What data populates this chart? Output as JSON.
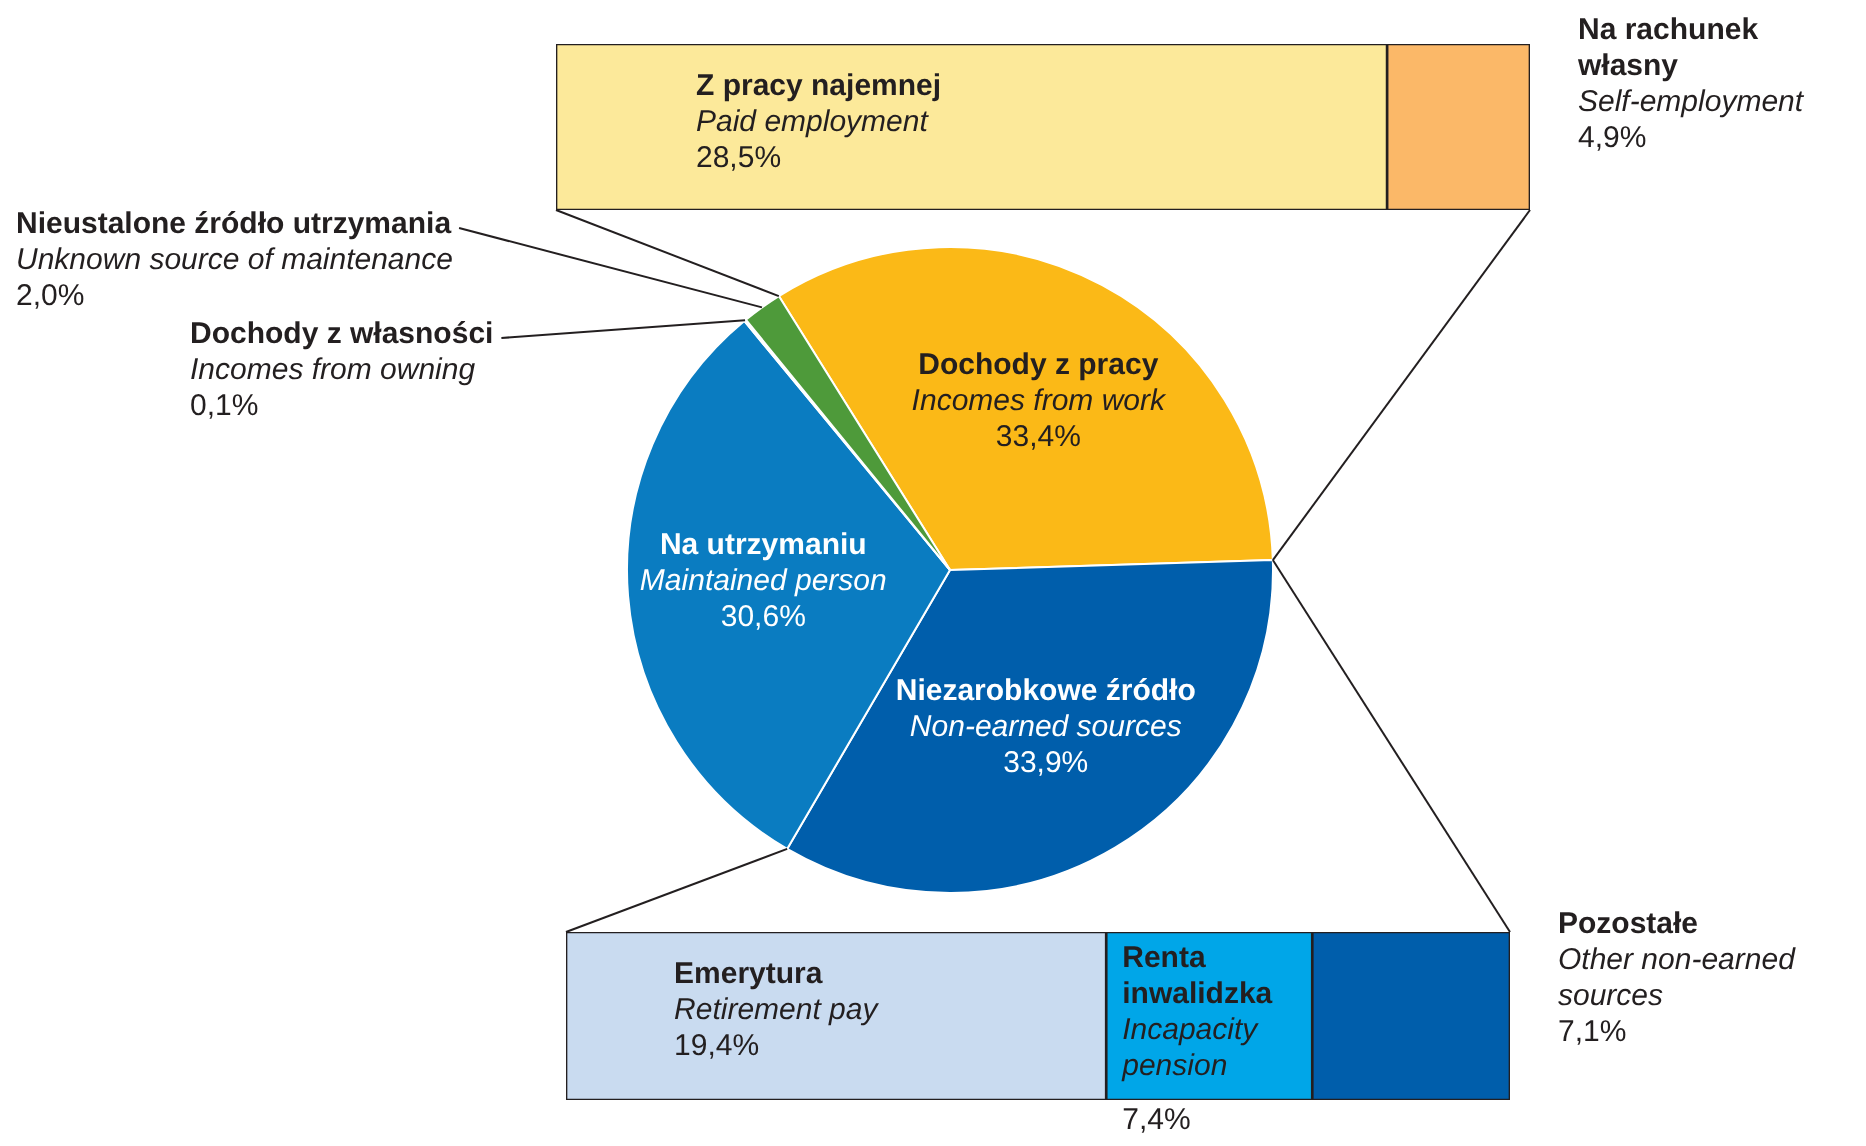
{
  "chart_data": [
    {
      "type": "pie",
      "categories": [
        "Dochody z pracy\nIncomes from work",
        "Niezarobkowe źródło\nNon-earned sources",
        "Na utrzymaniu\nMaintained person",
        "Dochody z własności\nIncomes from owning",
        "Nieustalone źródło utrzymania\nUnknown source of maintenance"
      ],
      "values": [
        33.4,
        33.9,
        30.6,
        0.1,
        2.0
      ],
      "value_labels": [
        "33,4%",
        "33,9%",
        "30,6%",
        "0,1%",
        "2,0%"
      ],
      "colors": [
        "#fbb917",
        "#005eab",
        "#0a7cc1",
        "#d9d9d9",
        "#4e9a3a"
      ]
    },
    {
      "type": "bar",
      "orientation": "horizontal",
      "stacked": true,
      "categories": [
        null
      ],
      "series": [
        {
          "name": "Z pracy najemnej\nPaid employment",
          "color": "#fce99a",
          "values": [
            28.5
          ],
          "value_labels": [
            "28,5%"
          ]
        },
        {
          "name": "Na rachunek własny\nSelf-employment",
          "color": "#fbb868",
          "values": [
            4.9
          ],
          "value_labels": [
            "4,9%"
          ]
        }
      ]
    },
    {
      "type": "bar",
      "orientation": "horizontal",
      "stacked": true,
      "categories": [
        null
      ],
      "series": [
        {
          "name": "Emerytura\nRetirement pay",
          "color": "#c9dbf0",
          "values": [
            19.4
          ],
          "value_labels": [
            "19,4%"
          ]
        },
        {
          "name": "Renta inwalidzka\nIncapacity pension",
          "color": "#00a6e8",
          "values": [
            7.4
          ],
          "value_labels": [
            "7,4%"
          ]
        },
        {
          "name": "Pozostałe\nOther non-earned sources",
          "color": "#005eab",
          "values": [
            7.1
          ],
          "value_labels": [
            "7,1%"
          ]
        }
      ]
    }
  ]
}
